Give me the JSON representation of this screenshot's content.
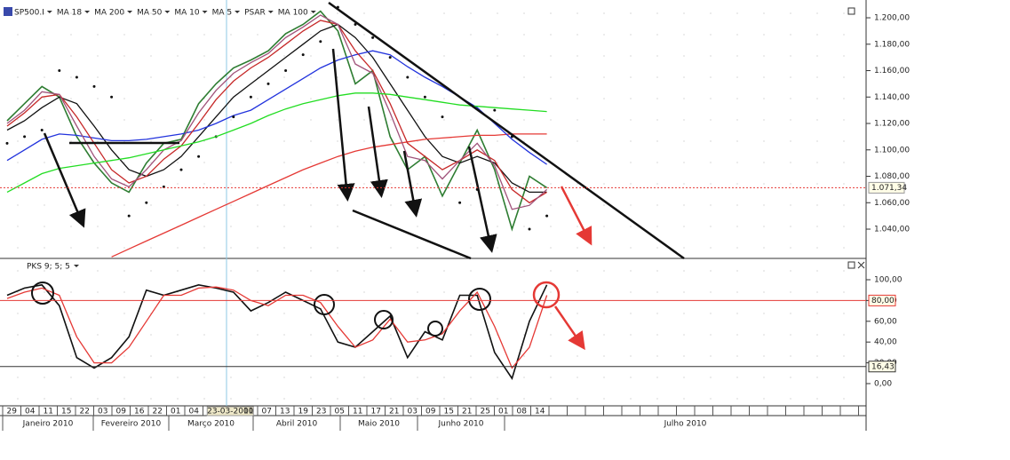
{
  "chart_data": [
    {
      "type": "line",
      "ylim": [
        1018.5,
        1210.1
      ],
      "yticks": [
        {
          "value": 1040,
          "label": "1.040,00"
        },
        {
          "value": 1060,
          "label": "1.060,00"
        },
        {
          "value": 1080,
          "label": "1.080,00"
        },
        {
          "value": 1100,
          "label": "1.100,00"
        },
        {
          "value": 1120,
          "label": "1.120,00"
        },
        {
          "value": 1140,
          "label": "1.140,00"
        },
        {
          "value": 1160,
          "label": "1.160,00"
        },
        {
          "value": 1180,
          "label": "1.180,00"
        },
        {
          "value": 1200,
          "label": "1.200,00"
        }
      ],
      "last": {
        "value": 1071.34,
        "label": "1.071,34"
      },
      "series": [
        {
          "name": "SP500.I",
          "color": "#2e7d32",
          "values": [
            1122,
            1135,
            1148,
            1140,
            1110,
            1090,
            1075,
            1068,
            1090,
            1105,
            1108,
            1135,
            1150,
            1162,
            1168,
            1175,
            1188,
            1195,
            1205,
            1190,
            1150,
            1160,
            1110,
            1085,
            1095,
            1065,
            1090,
            1115,
            1085,
            1040,
            1080,
            1071.34
          ]
        },
        {
          "name": "MA 18",
          "color": "#111111",
          "values": [
            1115,
            1122,
            1132,
            1140,
            1135,
            1118,
            1100,
            1085,
            1080,
            1085,
            1095,
            1110,
            1125,
            1140,
            1150,
            1160,
            1170,
            1180,
            1190,
            1195,
            1185,
            1170,
            1150,
            1130,
            1110,
            1095,
            1090,
            1095,
            1090,
            1075,
            1068,
            1068
          ]
        },
        {
          "name": "MA 200",
          "color": "#e53935",
          "values": [
            null,
            null,
            null,
            null,
            null,
            null,
            1019,
            1025,
            1031,
            1037,
            1043,
            1049,
            1055,
            1061,
            1067,
            1073,
            1079,
            1085,
            1090,
            1095,
            1099,
            1102,
            1104,
            1106,
            1108,
            1109,
            1110,
            1111,
            1111,
            1112,
            1112,
            1112
          ]
        },
        {
          "name": "MA 50",
          "color": "#2233dd",
          "values": [
            1092,
            1100,
            1108,
            1112,
            1111,
            1109,
            1107,
            1107,
            1108,
            1110,
            1112,
            1115,
            1120,
            1126,
            1130,
            1138,
            1146,
            1154,
            1162,
            1168,
            1172,
            1175,
            1172,
            1163,
            1155,
            1148,
            1140,
            1132,
            1120,
            1108,
            1098,
            1089
          ]
        },
        {
          "name": "MA 10",
          "color": "#c62828",
          "values": [
            1118,
            1128,
            1140,
            1142,
            1125,
            1105,
            1085,
            1075,
            1080,
            1093,
            1103,
            1120,
            1138,
            1152,
            1162,
            1170,
            1180,
            1190,
            1198,
            1195,
            1175,
            1160,
            1135,
            1105,
            1095,
            1085,
            1092,
            1100,
            1092,
            1070,
            1060,
            1068
          ]
        },
        {
          "name": "MA 5",
          "color": "#a0527a",
          "values": [
            1120,
            1130,
            1144,
            1142,
            1118,
            1095,
            1078,
            1072,
            1085,
            1100,
            1107,
            1128,
            1145,
            1158,
            1166,
            1173,
            1185,
            1193,
            1202,
            1195,
            1165,
            1158,
            1128,
            1095,
            1092,
            1078,
            1092,
            1105,
            1088,
            1055,
            1058,
            1070
          ]
        },
        {
          "name": "PSAR",
          "color": "#111111",
          "marker": "dots",
          "values": [
            1105,
            1110,
            1115,
            1160,
            1155,
            1148,
            1140,
            1050,
            1060,
            1072,
            1085,
            1095,
            1110,
            1125,
            1140,
            1150,
            1160,
            1172,
            1182,
            1208,
            1195,
            1185,
            1170,
            1155,
            1140,
            1125,
            1060,
            1070,
            1130,
            1110,
            1040,
            1050
          ]
        },
        {
          "name": "MA 100",
          "color": "#22dd22",
          "values": [
            1068,
            1075,
            1082,
            1086,
            1088,
            1090,
            1092,
            1094,
            1097,
            1100,
            1103,
            1106,
            1110,
            1115,
            1120,
            1126,
            1131,
            1135,
            1138,
            1141,
            1143,
            1143,
            1142,
            1140,
            1138,
            1136,
            1134,
            1133,
            1132,
            1131,
            1130,
            1129
          ]
        }
      ]
    },
    {
      "type": "line",
      "title": "PKS 9; 5; 5",
      "ylim": [
        -21.4,
        117.1
      ],
      "yticks": [
        {
          "value": 0,
          "label": "0,00"
        },
        {
          "value": 20,
          "label": "20,00"
        },
        {
          "value": 40,
          "label": "40,00"
        },
        {
          "value": 60,
          "label": "60,00"
        },
        {
          "value": 80,
          "label": "80,00"
        },
        {
          "value": 100,
          "label": "100,00"
        }
      ],
      "hlines": [
        {
          "value": 80,
          "label": "80,00",
          "color": "#e53935"
        },
        {
          "value": 16.43,
          "label": "16,43",
          "color": "#333333"
        }
      ],
      "series": [
        {
          "color": "#111111",
          "values": [
            85,
            92,
            95,
            75,
            25,
            15,
            25,
            45,
            90,
            85,
            90,
            95,
            92,
            88,
            70,
            78,
            88,
            80,
            72,
            40,
            35,
            50,
            65,
            25,
            50,
            42,
            85,
            85,
            30,
            5,
            60,
            95
          ]
        },
        {
          "color": "#e53935",
          "values": [
            82,
            88,
            92,
            85,
            45,
            20,
            20,
            35,
            60,
            85,
            85,
            92,
            93,
            90,
            80,
            75,
            85,
            85,
            78,
            55,
            35,
            42,
            62,
            40,
            42,
            48,
            70,
            88,
            55,
            15,
            35,
            85
          ]
        }
      ]
    }
  ],
  "date_axis": {
    "days": [
      "29",
      "04",
      "11",
      "15",
      "22",
      "03",
      "09",
      "16",
      "22",
      "01",
      "04",
      "10",
      "23-03-2010",
      "01",
      "07",
      "13",
      "19",
      "23",
      "05",
      "11",
      "17",
      "21",
      "03",
      "09",
      "15",
      "21",
      "25",
      "01",
      "08",
      "14"
    ],
    "months": [
      "Janeiro 2010",
      "Fevereiro 2010",
      "Março 2010",
      "Abril 2010",
      "Maio 2010",
      "Junho 2010",
      "Julho 2010"
    ]
  }
}
